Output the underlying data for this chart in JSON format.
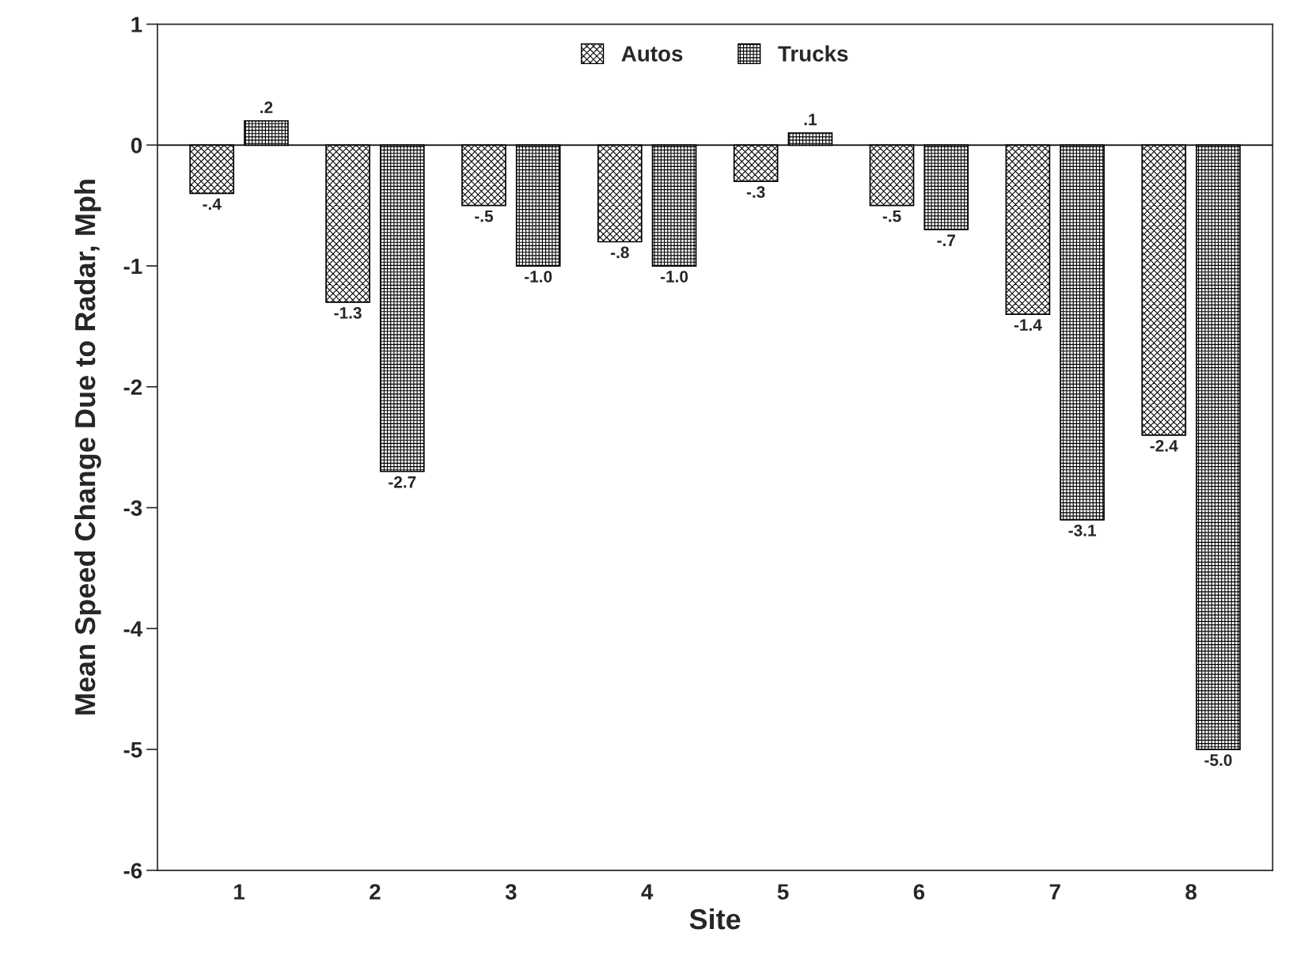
{
  "chart_data": {
    "type": "bar",
    "xlabel": "Site",
    "ylabel": "Mean Speed Change Due to Radar, Mph",
    "categories": [
      "1",
      "2",
      "3",
      "4",
      "5",
      "6",
      "7",
      "8"
    ],
    "series": [
      {
        "name": "Autos",
        "color": "#000000",
        "values": [
          -0.4,
          -1.3,
          -0.5,
          -0.8,
          -0.3,
          -0.5,
          -1.4,
          -2.4
        ],
        "value_labels": [
          "-.4",
          "-1.3",
          "-.5",
          "-.8",
          "-.3",
          "-.5",
          "-1.4",
          "-2.4"
        ]
      },
      {
        "name": "Trucks",
        "color": "#000000",
        "values": [
          0.2,
          -2.7,
          -1.0,
          -1.0,
          0.1,
          -0.7,
          -3.1,
          -5.0
        ],
        "value_labels": [
          ".2",
          "-2.7",
          "-1.0",
          "-1.0",
          ".1",
          "-.7",
          "-3.1",
          "-5.0"
        ]
      }
    ],
    "ylim": [
      -6,
      1
    ],
    "yticks": [
      -6,
      -5,
      -4,
      -3,
      -2,
      -1,
      0,
      1
    ],
    "ref_lines": [
      {
        "axis": "y",
        "value": 0,
        "color": "#000000"
      }
    ],
    "legend": "top",
    "grid": false
  }
}
